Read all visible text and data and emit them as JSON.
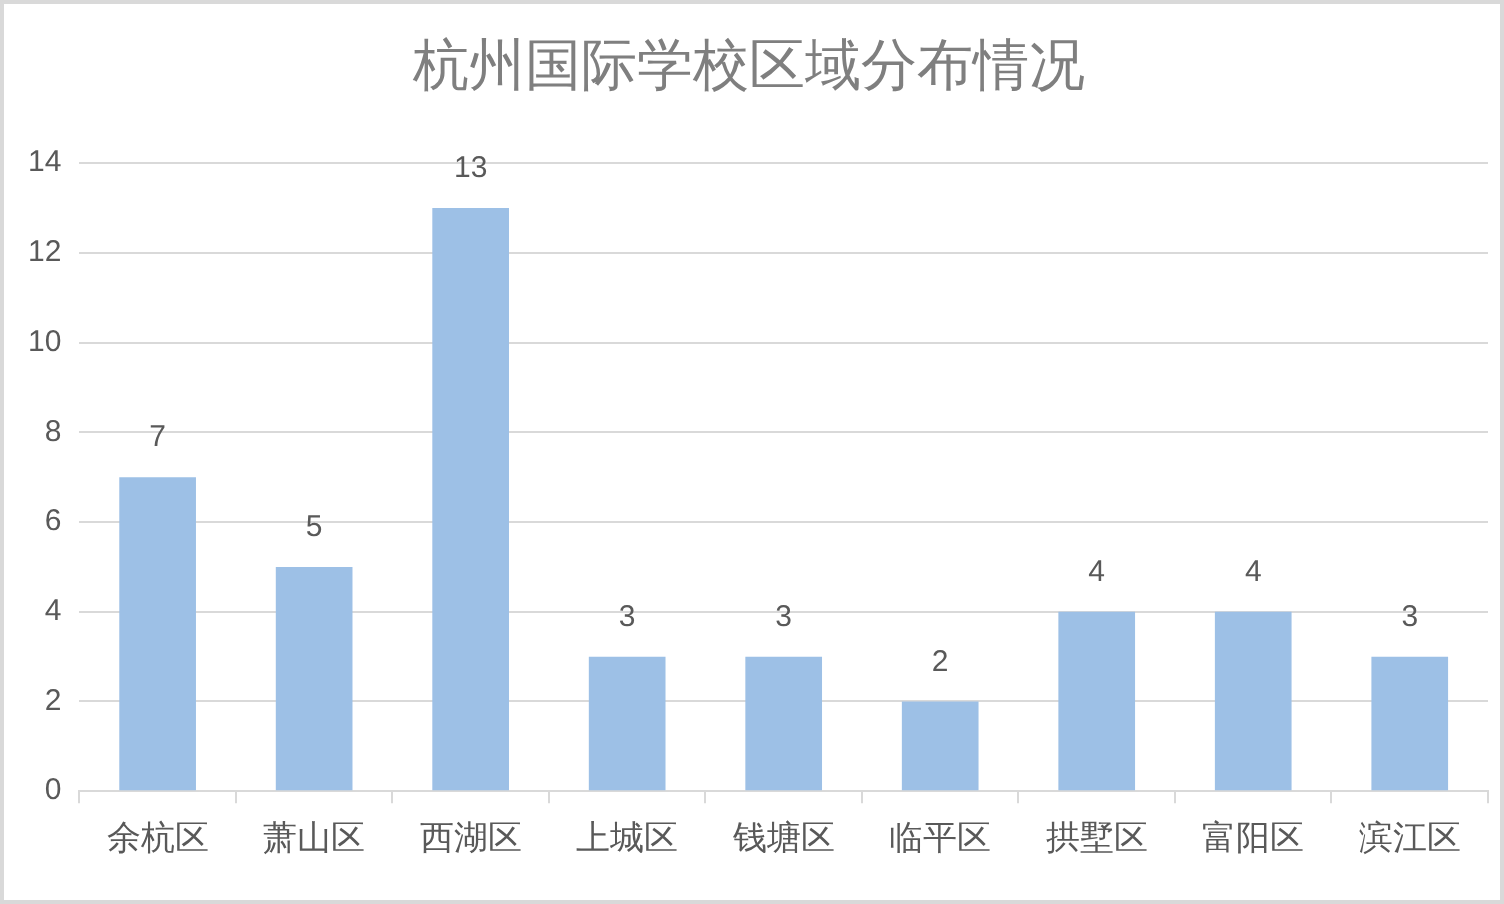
{
  "chart_data": {
    "type": "bar",
    "title": "杭州国际学校区域分布情况",
    "categories": [
      "余杭区",
      "萧山区",
      "西湖区",
      "上城区",
      "钱塘区",
      "临平区",
      "拱墅区",
      "富阳区",
      "滨江区"
    ],
    "values": [
      7,
      5,
      13,
      3,
      3,
      2,
      4,
      4,
      3
    ],
    "color": "#9dc0e6",
    "ylim": [
      0,
      14
    ],
    "yticks": [
      0,
      2,
      4,
      6,
      8,
      10,
      12,
      14
    ],
    "grid": "y",
    "data_labels": true
  }
}
